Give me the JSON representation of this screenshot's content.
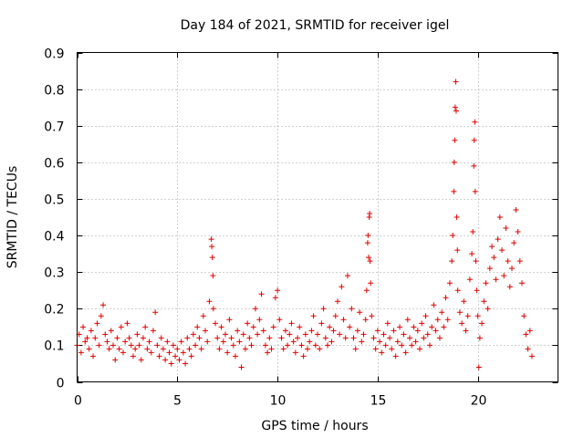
{
  "chart_data": {
    "type": "scatter",
    "title": "Day 184 of 2021, SRMTID for receiver igel",
    "xlabel": "GPS time / hours",
    "ylabel": "SRMTID / TECUs",
    "xlim": [
      0,
      24
    ],
    "ylim": [
      0,
      0.9
    ],
    "x_ticks": [
      0,
      5,
      10,
      15,
      20
    ],
    "x_tick_labels": [
      "0",
      "5",
      "10",
      "15",
      "20"
    ],
    "y_ticks": [
      0,
      0.1,
      0.2,
      0.3,
      0.4,
      0.5,
      0.6,
      0.7,
      0.8,
      0.9
    ],
    "y_tick_labels": [
      "0",
      "0.1",
      "0.2",
      "0.3",
      "0.4",
      "0.5",
      "0.6",
      "0.7",
      "0.8",
      "0.9"
    ],
    "grid": true,
    "marker": "+",
    "color": "#e00000",
    "series": [
      {
        "name": "SRMTID",
        "points": [
          [
            0.0,
            0.1
          ],
          [
            0.1,
            0.13
          ],
          [
            0.2,
            0.08
          ],
          [
            0.3,
            0.15
          ],
          [
            0.4,
            0.11
          ],
          [
            0.5,
            0.12
          ],
          [
            0.6,
            0.09
          ],
          [
            0.7,
            0.14
          ],
          [
            0.8,
            0.07
          ],
          [
            0.9,
            0.12
          ],
          [
            1.0,
            0.16
          ],
          [
            1.1,
            0.1
          ],
          [
            1.2,
            0.18
          ],
          [
            1.3,
            0.21
          ],
          [
            1.4,
            0.13
          ],
          [
            1.5,
            0.11
          ],
          [
            1.6,
            0.09
          ],
          [
            1.7,
            0.14
          ],
          [
            1.8,
            0.1
          ],
          [
            1.9,
            0.06
          ],
          [
            2.0,
            0.12
          ],
          [
            2.1,
            0.09
          ],
          [
            2.2,
            0.15
          ],
          [
            2.3,
            0.08
          ],
          [
            2.4,
            0.11
          ],
          [
            2.5,
            0.16
          ],
          [
            2.6,
            0.12
          ],
          [
            2.7,
            0.1
          ],
          [
            2.8,
            0.07
          ],
          [
            2.9,
            0.09
          ],
          [
            3.0,
            0.13
          ],
          [
            3.1,
            0.1
          ],
          [
            3.2,
            0.06
          ],
          [
            3.3,
            0.12
          ],
          [
            3.4,
            0.15
          ],
          [
            3.5,
            0.09
          ],
          [
            3.6,
            0.11
          ],
          [
            3.7,
            0.08
          ],
          [
            3.8,
            0.14
          ],
          [
            3.9,
            0.19
          ],
          [
            4.0,
            0.1
          ],
          [
            4.1,
            0.07
          ],
          [
            4.2,
            0.12
          ],
          [
            4.3,
            0.09
          ],
          [
            4.4,
            0.06
          ],
          [
            4.5,
            0.11
          ],
          [
            4.6,
            0.08
          ],
          [
            4.7,
            0.05
          ],
          [
            4.8,
            0.1
          ],
          [
            4.9,
            0.07
          ],
          [
            5.0,
            0.09
          ],
          [
            5.1,
            0.06
          ],
          [
            5.2,
            0.11
          ],
          [
            5.3,
            0.08
          ],
          [
            5.4,
            0.05
          ],
          [
            5.5,
            0.12
          ],
          [
            5.6,
            0.09
          ],
          [
            5.7,
            0.07
          ],
          [
            5.8,
            0.13
          ],
          [
            5.9,
            0.1
          ],
          [
            6.0,
            0.15
          ],
          [
            6.1,
            0.12
          ],
          [
            6.2,
            0.09
          ],
          [
            6.3,
            0.18
          ],
          [
            6.4,
            0.14
          ],
          [
            6.5,
            0.11
          ],
          [
            6.6,
            0.22
          ],
          [
            6.7,
            0.39
          ],
          [
            6.72,
            0.37
          ],
          [
            6.75,
            0.34
          ],
          [
            6.78,
            0.29
          ],
          [
            6.8,
            0.2
          ],
          [
            6.9,
            0.16
          ],
          [
            7.0,
            0.12
          ],
          [
            7.1,
            0.09
          ],
          [
            7.2,
            0.15
          ],
          [
            7.3,
            0.11
          ],
          [
            7.4,
            0.13
          ],
          [
            7.5,
            0.08
          ],
          [
            7.6,
            0.17
          ],
          [
            7.7,
            0.12
          ],
          [
            7.8,
            0.1
          ],
          [
            7.9,
            0.07
          ],
          [
            8.0,
            0.14
          ],
          [
            8.1,
            0.11
          ],
          [
            8.2,
            0.04
          ],
          [
            8.3,
            0.13
          ],
          [
            8.4,
            0.09
          ],
          [
            8.5,
            0.16
          ],
          [
            8.6,
            0.12
          ],
          [
            8.7,
            0.1
          ],
          [
            8.8,
            0.15
          ],
          [
            8.9,
            0.2
          ],
          [
            9.0,
            0.13
          ],
          [
            9.1,
            0.17
          ],
          [
            9.2,
            0.24
          ],
          [
            9.3,
            0.14
          ],
          [
            9.4,
            0.1
          ],
          [
            9.5,
            0.08
          ],
          [
            9.6,
            0.12
          ],
          [
            9.7,
            0.09
          ],
          [
            9.8,
            0.15
          ],
          [
            9.9,
            0.23
          ],
          [
            10.0,
            0.25
          ],
          [
            10.1,
            0.17
          ],
          [
            10.2,
            0.12
          ],
          [
            10.3,
            0.09
          ],
          [
            10.4,
            0.14
          ],
          [
            10.5,
            0.1
          ],
          [
            10.6,
            0.13
          ],
          [
            10.7,
            0.16
          ],
          [
            10.8,
            0.11
          ],
          [
            10.9,
            0.08
          ],
          [
            11.0,
            0.12
          ],
          [
            11.1,
            0.15
          ],
          [
            11.2,
            0.1
          ],
          [
            11.3,
            0.07
          ],
          [
            11.4,
            0.13
          ],
          [
            11.5,
            0.09
          ],
          [
            11.6,
            0.11
          ],
          [
            11.7,
            0.14
          ],
          [
            11.8,
            0.18
          ],
          [
            11.9,
            0.1
          ],
          [
            12.0,
            0.13
          ],
          [
            12.1,
            0.09
          ],
          [
            12.2,
            0.16
          ],
          [
            12.3,
            0.2
          ],
          [
            12.4,
            0.12
          ],
          [
            12.5,
            0.1
          ],
          [
            12.6,
            0.15
          ],
          [
            12.7,
            0.11
          ],
          [
            12.8,
            0.14
          ],
          [
            12.9,
            0.18
          ],
          [
            13.0,
            0.22
          ],
          [
            13.1,
            0.13
          ],
          [
            13.2,
            0.26
          ],
          [
            13.3,
            0.17
          ],
          [
            13.4,
            0.12
          ],
          [
            13.5,
            0.29
          ],
          [
            13.6,
            0.15
          ],
          [
            13.7,
            0.2
          ],
          [
            13.8,
            0.12
          ],
          [
            13.9,
            0.09
          ],
          [
            14.0,
            0.14
          ],
          [
            14.1,
            0.19
          ],
          [
            14.2,
            0.11
          ],
          [
            14.3,
            0.13
          ],
          [
            14.4,
            0.17
          ],
          [
            14.45,
            0.25
          ],
          [
            14.5,
            0.38
          ],
          [
            14.52,
            0.4
          ],
          [
            14.55,
            0.34
          ],
          [
            14.58,
            0.45
          ],
          [
            14.6,
            0.46
          ],
          [
            14.62,
            0.33
          ],
          [
            14.65,
            0.27
          ],
          [
            14.7,
            0.18
          ],
          [
            14.8,
            0.12
          ],
          [
            14.9,
            0.09
          ],
          [
            15.0,
            0.14
          ],
          [
            15.1,
            0.11
          ],
          [
            15.2,
            0.08
          ],
          [
            15.3,
            0.13
          ],
          [
            15.4,
            0.1
          ],
          [
            15.5,
            0.16
          ],
          [
            15.6,
            0.12
          ],
          [
            15.7,
            0.09
          ],
          [
            15.8,
            0.14
          ],
          [
            15.9,
            0.07
          ],
          [
            16.0,
            0.11
          ],
          [
            16.1,
            0.15
          ],
          [
            16.2,
            0.1
          ],
          [
            16.3,
            0.13
          ],
          [
            16.4,
            0.08
          ],
          [
            16.5,
            0.17
          ],
          [
            16.6,
            0.12
          ],
          [
            16.7,
            0.1
          ],
          [
            16.8,
            0.15
          ],
          [
            16.9,
            0.11
          ],
          [
            17.0,
            0.14
          ],
          [
            17.1,
            0.09
          ],
          [
            17.2,
            0.16
          ],
          [
            17.3,
            0.12
          ],
          [
            17.4,
            0.18
          ],
          [
            17.5,
            0.13
          ],
          [
            17.6,
            0.1
          ],
          [
            17.7,
            0.15
          ],
          [
            17.8,
            0.21
          ],
          [
            17.9,
            0.14
          ],
          [
            18.0,
            0.17
          ],
          [
            18.1,
            0.12
          ],
          [
            18.2,
            0.19
          ],
          [
            18.3,
            0.15
          ],
          [
            18.4,
            0.23
          ],
          [
            18.5,
            0.17
          ],
          [
            18.6,
            0.27
          ],
          [
            18.7,
            0.33
          ],
          [
            18.75,
            0.4
          ],
          [
            18.8,
            0.52
          ],
          [
            18.82,
            0.6
          ],
          [
            18.85,
            0.66
          ],
          [
            18.87,
            0.75
          ],
          [
            18.9,
            0.82
          ],
          [
            18.92,
            0.74
          ],
          [
            18.95,
            0.45
          ],
          [
            18.98,
            0.36
          ],
          [
            19.0,
            0.25
          ],
          [
            19.1,
            0.19
          ],
          [
            19.2,
            0.16
          ],
          [
            19.3,
            0.22
          ],
          [
            19.4,
            0.14
          ],
          [
            19.5,
            0.18
          ],
          [
            19.6,
            0.28
          ],
          [
            19.7,
            0.35
          ],
          [
            19.75,
            0.41
          ],
          [
            19.8,
            0.59
          ],
          [
            19.82,
            0.66
          ],
          [
            19.85,
            0.71
          ],
          [
            19.87,
            0.52
          ],
          [
            19.9,
            0.33
          ],
          [
            19.95,
            0.25
          ],
          [
            20.0,
            0.18
          ],
          [
            20.05,
            0.04
          ],
          [
            20.1,
            0.12
          ],
          [
            20.2,
            0.16
          ],
          [
            20.3,
            0.22
          ],
          [
            20.4,
            0.27
          ],
          [
            20.5,
            0.2
          ],
          [
            20.6,
            0.31
          ],
          [
            20.7,
            0.37
          ],
          [
            20.8,
            0.34
          ],
          [
            20.9,
            0.28
          ],
          [
            21.0,
            0.39
          ],
          [
            21.1,
            0.45
          ],
          [
            21.2,
            0.36
          ],
          [
            21.3,
            0.29
          ],
          [
            21.4,
            0.42
          ],
          [
            21.5,
            0.33
          ],
          [
            21.6,
            0.26
          ],
          [
            21.7,
            0.31
          ],
          [
            21.8,
            0.38
          ],
          [
            21.9,
            0.47
          ],
          [
            22.0,
            0.41
          ],
          [
            22.1,
            0.33
          ],
          [
            22.2,
            0.27
          ],
          [
            22.3,
            0.18
          ],
          [
            22.4,
            0.13
          ],
          [
            22.5,
            0.09
          ],
          [
            22.6,
            0.14
          ],
          [
            22.7,
            0.07
          ]
        ]
      }
    ]
  }
}
